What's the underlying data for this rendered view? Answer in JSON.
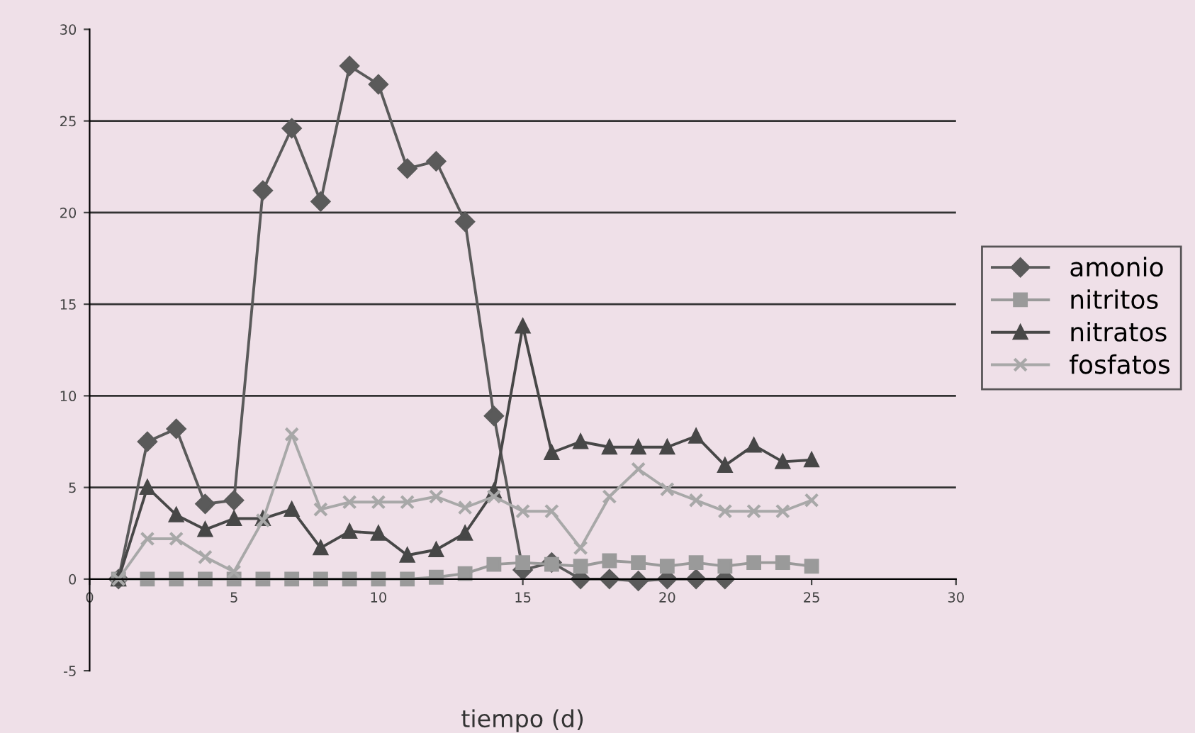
{
  "chart_data": {
    "type": "line",
    "xlabel": "tiempo (d)",
    "xlim": [
      0,
      30
    ],
    "xticks": [
      0,
      5,
      10,
      15,
      20,
      25,
      30
    ],
    "ylim": [
      -5,
      30
    ],
    "yticks": [
      -5,
      0,
      5,
      10,
      15,
      20,
      25,
      30
    ],
    "grid": "y",
    "legend": "right",
    "line_style": "solid",
    "series": [
      {
        "name": "amonio",
        "color": "#5a5a5a",
        "marker": "diamond",
        "x": [
          1,
          2,
          3,
          4,
          5,
          6,
          7,
          8,
          9,
          10,
          11,
          12,
          13,
          14,
          15,
          16,
          17,
          18,
          19,
          20,
          21,
          22
        ],
        "values": [
          0,
          7.5,
          8.2,
          4.1,
          4.3,
          21.2,
          24.6,
          20.6,
          28,
          27,
          22.4,
          22.8,
          19.5,
          8.9,
          0.5,
          0.9,
          0,
          0,
          -0.1,
          0,
          0,
          0
        ]
      },
      {
        "name": "nitritos",
        "color": "#9a9a9a",
        "marker": "square",
        "x": [
          1,
          2,
          3,
          4,
          5,
          6,
          7,
          8,
          9,
          10,
          11,
          12,
          13,
          14,
          15,
          16,
          17,
          18,
          19,
          20,
          21,
          22,
          23,
          24,
          25
        ],
        "values": [
          0,
          0,
          0,
          0,
          0,
          0,
          0,
          0,
          0,
          0,
          0,
          0.1,
          0.3,
          0.8,
          0.9,
          0.8,
          0.7,
          1.0,
          0.9,
          0.7,
          0.9,
          0.7,
          0.9,
          0.9,
          0.7
        ]
      },
      {
        "name": "nitratos",
        "color": "#474747",
        "marker": "triangle",
        "x": [
          1,
          2,
          3,
          4,
          5,
          6,
          7,
          8,
          9,
          10,
          11,
          12,
          13,
          14,
          15,
          16,
          17,
          18,
          19,
          20,
          21,
          22,
          23,
          24,
          25
        ],
        "values": [
          0,
          5.0,
          3.5,
          2.7,
          3.3,
          3.3,
          3.8,
          1.7,
          2.6,
          2.5,
          1.3,
          1.6,
          2.5,
          4.8,
          13.8,
          6.9,
          7.5,
          7.2,
          7.2,
          7.2,
          7.8,
          6.2,
          7.3,
          6.4,
          6.5
        ]
      },
      {
        "name": "fosfatos",
        "color": "#a8a8a8",
        "marker": "cross",
        "x": [
          1,
          2,
          3,
          4,
          5,
          6,
          7,
          8,
          9,
          10,
          11,
          12,
          13,
          14,
          15,
          16,
          17,
          18,
          19,
          20,
          21,
          22,
          23,
          24,
          25
        ],
        "values": [
          0,
          2.2,
          2.2,
          1.2,
          0.4,
          3.2,
          7.9,
          3.8,
          4.2,
          4.2,
          4.2,
          4.5,
          3.9,
          4.5,
          3.7,
          3.7,
          1.7,
          4.5,
          6.0,
          4.9,
          4.3,
          3.7,
          3.7,
          3.7,
          4.3
        ]
      }
    ]
  }
}
